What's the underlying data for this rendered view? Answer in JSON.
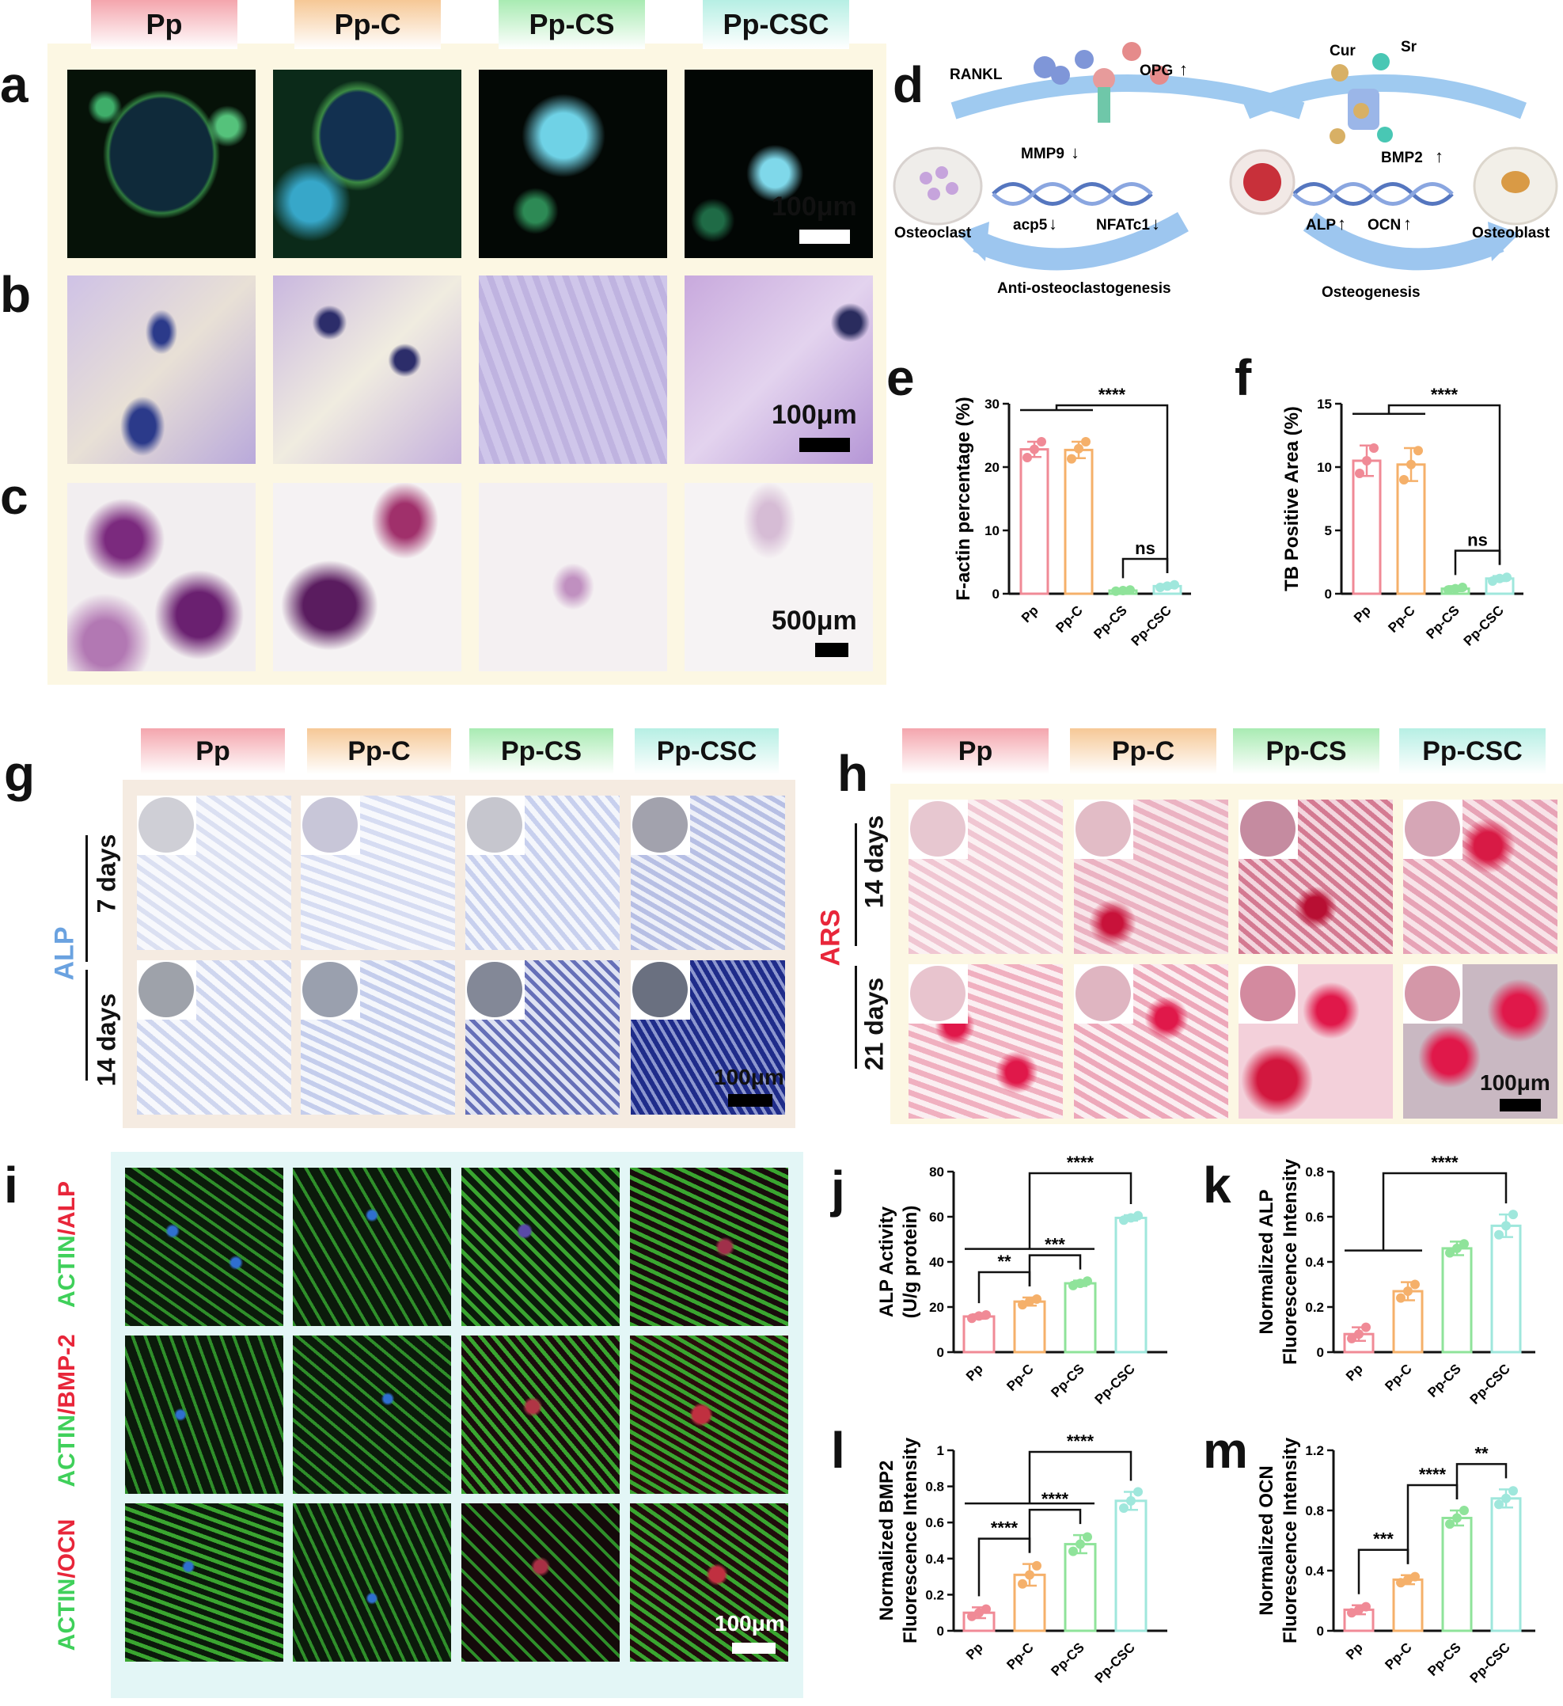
{
  "groups": [
    "Pp",
    "Pp-C",
    "Pp-CS",
    "Pp-CSC"
  ],
  "group_colors": [
    "#f08a96",
    "#f5b06a",
    "#8fe39a",
    "#9fe7dc"
  ],
  "panels": {
    "a": "a",
    "b": "b",
    "c": "c",
    "d": "d",
    "e": "e",
    "f": "f",
    "g": "g",
    "h": "h",
    "i": "i",
    "j": "j",
    "k": "k",
    "l": "l",
    "m": "m"
  },
  "scale_bars": {
    "a": "100μm",
    "b": "100μm",
    "c": "500μm",
    "g": "100μm",
    "h": "100μm",
    "i": "100μm"
  },
  "g_labels": {
    "stain": "ALP",
    "row1": "7 days",
    "row2": "14 days"
  },
  "h_labels": {
    "stain": "ARS",
    "row1": "14 days",
    "row2": "21 days"
  },
  "i_labels": {
    "row1_a": "ACTIN",
    "row1_b": "/ALP",
    "row2_a": "ACTIN",
    "row2_b": "/BMP-2",
    "row3_a": "ACTIN",
    "row3_b": "/OCN"
  },
  "diagram": {
    "rankl": "RANKL",
    "opg": "OPG",
    "cur": "Cur",
    "sr": "Sr",
    "mmp9": "MMP9",
    "acp5": "acp5",
    "nfatc1": "NFATc1",
    "bmp2": "BMP2",
    "alp": "ALP",
    "ocn": "OCN",
    "osteoclast": "Osteoclast",
    "osteoblast": "Osteoblast",
    "anti": "Anti-osteoclastogenesis",
    "osteo": "Osteogenesis",
    "up": "↑",
    "down": "↓"
  },
  "chart_data": [
    {
      "id": "e",
      "type": "bar",
      "categories": [
        "Pp",
        "Pp-C",
        "Pp-CS",
        "Pp-CSC"
      ],
      "values": [
        22.8,
        22.7,
        0.5,
        1.2
      ],
      "errors": [
        1.2,
        1.3,
        0.2,
        0.3
      ],
      "points": [
        [
          21.5,
          22.8,
          24.0
        ],
        [
          21.3,
          22.9,
          24.0
        ],
        [
          0.4,
          0.5,
          0.6
        ],
        [
          1.0,
          1.2,
          1.4
        ]
      ],
      "ylabel": "F-actin percentage (%)",
      "ylim": [
        0,
        30
      ],
      "yticks": [
        0,
        10,
        20,
        30
      ],
      "sig": [
        {
          "label": "****",
          "from": [
            0,
            1
          ],
          "to": 3
        },
        {
          "label": "ns",
          "a": 2,
          "b": 3
        }
      ]
    },
    {
      "id": "f",
      "type": "bar",
      "categories": [
        "Pp",
        "Pp-C",
        "Pp-CS",
        "Pp-CSC"
      ],
      "values": [
        10.5,
        10.2,
        0.4,
        1.2
      ],
      "errors": [
        1.2,
        1.3,
        0.2,
        0.2
      ],
      "points": [
        [
          9.5,
          10.5,
          11.5
        ],
        [
          9.0,
          10.2,
          11.3
        ],
        [
          0.3,
          0.4,
          0.5
        ],
        [
          1.0,
          1.2,
          1.3
        ]
      ],
      "ylabel": "TB Positive Area (%)",
      "ylim": [
        0,
        15
      ],
      "yticks": [
        0,
        5,
        10,
        15
      ],
      "sig": [
        {
          "label": "****",
          "from": [
            0,
            1
          ],
          "to": 3
        },
        {
          "label": "ns",
          "a": 2,
          "b": 3
        }
      ]
    },
    {
      "id": "j",
      "type": "bar",
      "categories": [
        "Pp",
        "Pp-C",
        "Pp-CS",
        "Pp-CSC"
      ],
      "values": [
        15.8,
        22.4,
        30.5,
        59.5
      ],
      "errors": [
        1.0,
        1.8,
        1.2,
        1.2
      ],
      "points": [
        [
          15.0,
          16.0,
          16.5
        ],
        [
          21.0,
          22.5,
          23.5
        ],
        [
          29.5,
          30.5,
          31.5
        ],
        [
          58.5,
          59.5,
          60.5
        ]
      ],
      "ylabel": "ALP Activity",
      "ylabel2": "(U/g protein)",
      "ylim": [
        0,
        80
      ],
      "yticks": [
        0,
        20,
        40,
        60,
        80
      ],
      "sig": [
        {
          "label": "**",
          "a": 0,
          "b": 1
        },
        {
          "label": "***",
          "a": 1,
          "b": 2
        },
        {
          "label": "****",
          "from": [
            0,
            1,
            2
          ],
          "to": 3
        }
      ]
    },
    {
      "id": "k",
      "type": "bar",
      "categories": [
        "Pp",
        "Pp-C",
        "Pp-CS",
        "Pp-CSC"
      ],
      "values": [
        0.08,
        0.27,
        0.46,
        0.56
      ],
      "errors": [
        0.03,
        0.04,
        0.03,
        0.05
      ],
      "points": [
        [
          0.06,
          0.08,
          0.11
        ],
        [
          0.24,
          0.27,
          0.3
        ],
        [
          0.44,
          0.46,
          0.48
        ],
        [
          0.52,
          0.56,
          0.61
        ]
      ],
      "ylabel": "Normalized ALP",
      "ylabel2": "Fluorescence Intensity",
      "ylim": [
        0,
        0.8
      ],
      "yticks": [
        0,
        0.2,
        0.4,
        0.6,
        0.8
      ],
      "sig": [
        {
          "label": "****",
          "from": [
            0,
            1
          ],
          "to": 3
        }
      ]
    },
    {
      "id": "l",
      "type": "bar",
      "categories": [
        "Pp",
        "Pp-C",
        "Pp-CS",
        "Pp-CSC"
      ],
      "values": [
        0.1,
        0.31,
        0.48,
        0.72
      ],
      "errors": [
        0.03,
        0.06,
        0.05,
        0.05
      ],
      "points": [
        [
          0.08,
          0.1,
          0.12
        ],
        [
          0.26,
          0.31,
          0.36
        ],
        [
          0.44,
          0.48,
          0.52
        ],
        [
          0.68,
          0.72,
          0.77
        ]
      ],
      "ylabel": "Normalized BMP2",
      "ylabel2": "Fluorescence Intensity",
      "ylim": [
        0,
        1.0
      ],
      "yticks": [
        0,
        0.2,
        0.4,
        0.6,
        0.8,
        1.0
      ],
      "sig": [
        {
          "label": "****",
          "a": 0,
          "b": 1
        },
        {
          "label": "****",
          "a": 1,
          "b": 2
        },
        {
          "label": "****",
          "from": [
            0,
            1,
            2
          ],
          "to": 3
        }
      ]
    },
    {
      "id": "m",
      "type": "bar",
      "categories": [
        "Pp",
        "Pp-C",
        "Pp-CS",
        "Pp-CSC"
      ],
      "values": [
        0.14,
        0.34,
        0.75,
        0.88
      ],
      "errors": [
        0.03,
        0.03,
        0.05,
        0.06
      ],
      "points": [
        [
          0.12,
          0.14,
          0.16
        ],
        [
          0.32,
          0.34,
          0.36
        ],
        [
          0.71,
          0.75,
          0.8
        ],
        [
          0.84,
          0.88,
          0.93
        ]
      ],
      "ylabel": "Normalized OCN",
      "ylabel2": "Fluorescence Intensity",
      "ylim": [
        0,
        1.2
      ],
      "yticks": [
        0,
        0.4,
        0.8,
        1.2
      ],
      "sig": [
        {
          "label": "***",
          "a": 0,
          "b": 1
        },
        {
          "label": "****",
          "a": 1,
          "b": 2
        },
        {
          "label": "**",
          "a": 2,
          "b": 3
        }
      ]
    }
  ]
}
